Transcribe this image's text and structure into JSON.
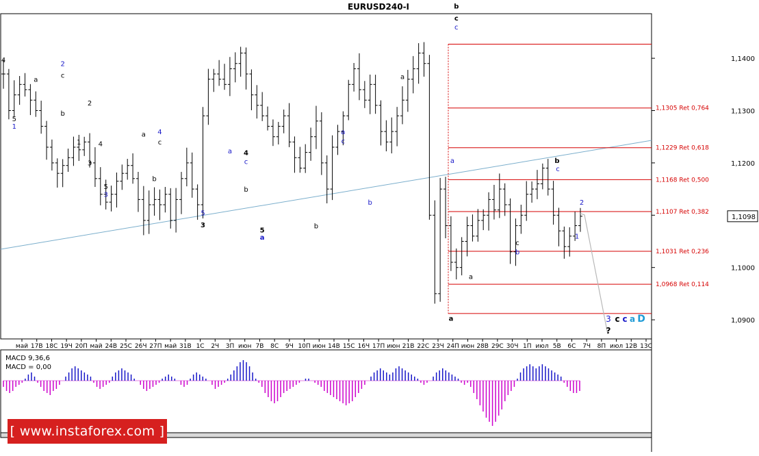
{
  "chart_data": {
    "type": "ohlc",
    "title": "EURUSD240-I",
    "symbol": "EURUSD",
    "timeframe": "H4",
    "ylim": [
      1.087,
      1.148
    ],
    "y_ticks": [
      "1,1400",
      "1,1300",
      "1,1200",
      "1,1100",
      "1,1000",
      "1,0900"
    ],
    "y_tick_values": [
      1.14,
      1.13,
      1.12,
      1.11,
      1.1,
      1.09
    ],
    "x_ticks": [
      "май",
      "17В",
      "18С",
      "19Ч",
      "20П",
      "май",
      "24В",
      "25С",
      "26Ч",
      "27П",
      "май",
      "31В",
      "1С",
      "2Ч",
      "3П",
      "июн",
      "7В",
      "8С",
      "9Ч",
      "10П",
      "июн",
      "14В",
      "15С",
      "16Ч",
      "17П",
      "июн",
      "21В",
      "22С",
      "23Ч",
      "24П",
      "июн",
      "28В",
      "29С",
      "30Ч",
      "1П",
      "июл",
      "5В",
      "6С",
      "7Ч",
      "8П",
      "июл",
      "12В",
      "13С"
    ],
    "current_price_label": "1,1098",
    "current_price": 1.1098,
    "price_path": [
      1.137,
      1.13,
      1.133,
      1.135,
      1.134,
      1.132,
      1.13,
      1.127,
      1.123,
      1.12,
      1.118,
      1.1195,
      1.121,
      1.123,
      1.1225,
      1.124,
      1.12,
      1.117,
      1.114,
      1.1125,
      1.114,
      1.1165,
      1.118,
      1.1195,
      1.117,
      1.113,
      1.109,
      1.112,
      1.113,
      1.112,
      1.114,
      1.109,
      1.113,
      1.117,
      1.12,
      1.115,
      1.112,
      1.129,
      1.136,
      1.137,
      1.136,
      1.135,
      1.138,
      1.139,
      1.141,
      1.137,
      1.133,
      1.131,
      1.129,
      1.127,
      1.125,
      1.127,
      1.129,
      1.124,
      1.121,
      1.119,
      1.122,
      1.125,
      1.128,
      1.12,
      1.115,
      1.123,
      1.126,
      1.129,
      1.135,
      1.138,
      1.134,
      1.132,
      1.135,
      1.131,
      1.126,
      1.124,
      1.126,
      1.129,
      1.132,
      1.136,
      1.138,
      1.141,
      1.139,
      1.11,
      1.095,
      1.115,
      1.108,
      1.101,
      1.1,
      1.105,
      1.108,
      1.106,
      1.109,
      1.11,
      1.113,
      1.111,
      1.115,
      1.112,
      1.103,
      1.108,
      1.11,
      1.114,
      1.115,
      1.116,
      1.119,
      1.115,
      1.11,
      1.107,
      1.104,
      1.106,
      1.108,
      1.1098
    ],
    "fib_levels": [
      {
        "label": "1,1305 Ret 0,764",
        "value": 1.1305
      },
      {
        "label": "1,1229 Ret 0,618",
        "value": 1.1229
      },
      {
        "label": "1,1168 Ret 0,500",
        "value": 1.1168
      },
      {
        "label": "1,1107 Ret 0,382",
        "value": 1.1107
      },
      {
        "label": "1,1031 Ret 0,236",
        "value": 1.1031
      },
      {
        "label": "1,0968 Ret 0,114",
        "value": 1.0968
      }
    ],
    "fib_high": 1.1427,
    "fib_low": 1.0912,
    "trendline": {
      "start_price": 1.1035,
      "end_price": 1.1243
    },
    "wave_labels": [
      {
        "text": "4",
        "color": "#000000",
        "bold": false,
        "bar": 0,
        "price": 1.1392
      },
      {
        "text": "5",
        "color": "#000000",
        "bold": false,
        "bar": 2,
        "price": 1.128
      },
      {
        "text": "1",
        "color": "#1616c8",
        "bold": false,
        "bar": 2,
        "price": 1.1265
      },
      {
        "text": "a",
        "color": "#000000",
        "bold": false,
        "bar": 6,
        "price": 1.1355
      },
      {
        "text": "2",
        "color": "#1616c8",
        "bold": false,
        "bar": 11,
        "price": 1.1385
      },
      {
        "text": "c",
        "color": "#000000",
        "bold": false,
        "bar": 11,
        "price": 1.1363
      },
      {
        "text": "b",
        "color": "#000000",
        "bold": false,
        "bar": 11,
        "price": 1.129
      },
      {
        "text": "2",
        "color": "#000000",
        "bold": false,
        "bar": 16,
        "price": 1.131
      },
      {
        "text": "1",
        "color": "#000000",
        "bold": false,
        "bar": 14,
        "price": 1.1235
      },
      {
        "text": "4",
        "color": "#000000",
        "bold": false,
        "bar": 18,
        "price": 1.1232
      },
      {
        "text": "3",
        "color": "#000000",
        "bold": false,
        "bar": 16,
        "price": 1.1195
      },
      {
        "text": "5",
        "color": "#000000",
        "bold": false,
        "bar": 19,
        "price": 1.115
      },
      {
        "text": "3",
        "color": "#1616c8",
        "bold": false,
        "bar": 19,
        "price": 1.1135
      },
      {
        "text": "a",
        "color": "#000000",
        "bold": false,
        "bar": 26,
        "price": 1.125
      },
      {
        "text": "4",
        "color": "#1616c8",
        "bold": false,
        "bar": 29,
        "price": 1.1255
      },
      {
        "text": "c",
        "color": "#000000",
        "bold": false,
        "bar": 29,
        "price": 1.1235
      },
      {
        "text": "b",
        "color": "#000000",
        "bold": false,
        "bar": 28,
        "price": 1.1165
      },
      {
        "text": "5",
        "color": "#1616c8",
        "bold": false,
        "bar": 37,
        "price": 1.11
      },
      {
        "text": "3",
        "color": "#000000",
        "bold": true,
        "bar": 37,
        "price": 1.1077
      },
      {
        "text": "a",
        "color": "#1616c8",
        "bold": false,
        "bar": 42,
        "price": 1.1218
      },
      {
        "text": "4",
        "color": "#000000",
        "bold": true,
        "bar": 45,
        "price": 1.1215
      },
      {
        "text": "c",
        "color": "#1616c8",
        "bold": false,
        "bar": 45,
        "price": 1.1198
      },
      {
        "text": "b",
        "color": "#000000",
        "bold": false,
        "bar": 45,
        "price": 1.1145
      },
      {
        "text": "5",
        "color": "#000000",
        "bold": true,
        "bar": 48,
        "price": 1.1067
      },
      {
        "text": "a",
        "color": "#1616c8",
        "bold": true,
        "bar": 48,
        "price": 1.1053
      },
      {
        "text": "b",
        "color": "#000000",
        "bold": false,
        "bar": 58,
        "price": 1.1075
      },
      {
        "text": "a",
        "color": "#1616c8",
        "bold": false,
        "bar": 63,
        "price": 1.1255
      },
      {
        "text": "c",
        "color": "#1616c8",
        "bold": false,
        "bar": 63,
        "price": 1.1237
      },
      {
        "text": "b",
        "color": "#1616c8",
        "bold": false,
        "bar": 68,
        "price": 1.112
      },
      {
        "text": "a",
        "color": "#000000",
        "bold": false,
        "bar": 74,
        "price": 1.136
      },
      {
        "text": "b",
        "color": "#000000",
        "bold": true,
        "bar": 84,
        "price": 1.1495
      },
      {
        "text": "c",
        "color": "#000000",
        "bold": true,
        "bar": 84,
        "price": 1.1472
      },
      {
        "text": "c",
        "color": "#1616c8",
        "bold": false,
        "bar": 84,
        "price": 1.1455
      }
    ],
    "main_wave_labels": [
      {
        "text": "a",
        "color": "#1616c8",
        "bold": false,
        "price": 1.12
      },
      {
        "text": "b",
        "color": "#000000",
        "bold": true,
        "price": 1.12
      },
      {
        "text": "c",
        "color": "#1616c8",
        "bold": false,
        "price": 1.1184
      },
      {
        "text": "2",
        "color": "#1616c8",
        "bold": false,
        "price": 1.112
      },
      {
        "text": "c",
        "color": "#000000",
        "bold": false,
        "price": 1.1043
      },
      {
        "text": "b",
        "color": "#1616c8",
        "bold": false,
        "price": 1.1025
      },
      {
        "text": "1",
        "color": "#1616c8",
        "bold": false,
        "price": 1.1055
      },
      {
        "text": "a",
        "color": "#000000",
        "bold": false,
        "price": 1.0978
      },
      {
        "text": "a",
        "color": "#000000",
        "bold": true,
        "price": 1.0898
      }
    ],
    "forecast": {
      "labels": [
        {
          "text": "3",
          "color": "#1616c8",
          "bold": false
        },
        {
          "text": "c",
          "color": "#000000",
          "bold": true
        },
        {
          "text": "c",
          "color": "#1616c8",
          "bold": true
        },
        {
          "text": "a",
          "color": "#1f9bd6",
          "bold": true
        },
        {
          "text": "D",
          "color": "#1f9bd6",
          "bold": true
        },
        {
          "text": "?",
          "color": "#000000",
          "bold": true
        }
      ]
    },
    "indicator": {
      "name": "MACD",
      "label_line1": "MACD 9,36,6",
      "label_line2": "MACD = 0,00",
      "positive_color": "#1616c8",
      "negative_color": "#cc00cc",
      "values": [
        -0.3,
        -0.5,
        -0.6,
        -0.5,
        -0.3,
        -0.2,
        -0.1,
        0.1,
        0.3,
        0.4,
        0.2,
        -0.1,
        -0.3,
        -0.5,
        -0.6,
        -0.7,
        -0.5,
        -0.4,
        -0.2,
        0.0,
        0.2,
        0.4,
        0.6,
        0.7,
        0.6,
        0.5,
        0.4,
        0.3,
        0.2,
        -0.1,
        -0.3,
        -0.4,
        -0.3,
        -0.2,
        -0.1,
        0.2,
        0.4,
        0.5,
        0.6,
        0.5,
        0.4,
        0.3,
        0.1,
        0.0,
        -0.2,
        -0.4,
        -0.5,
        -0.4,
        -0.3,
        -0.2,
        -0.1,
        0.1,
        0.2,
        0.3,
        0.2,
        0.1,
        0.0,
        -0.2,
        -0.3,
        -0.2,
        0.1,
        0.3,
        0.4,
        0.3,
        0.2,
        0.1,
        0.0,
        -0.2,
        -0.4,
        -0.3,
        -0.2,
        -0.1,
        0.1,
        0.3,
        0.5,
        0.7,
        0.9,
        1.0,
        0.9,
        0.7,
        0.4,
        0.1,
        -0.1,
        -0.3,
        -0.6,
        -0.8,
        -1.0,
        -1.1,
        -1.0,
        -0.8,
        -0.6,
        -0.5,
        -0.4,
        -0.3,
        -0.2,
        -0.1,
        0.0,
        0.1,
        0.1,
        0.0,
        -0.1,
        -0.2,
        -0.3,
        -0.5,
        -0.6,
        -0.7,
        -0.8,
        -0.9,
        -1.0,
        -1.1,
        -1.2,
        -1.1,
        -1.0,
        -0.8,
        -0.6,
        -0.4,
        -0.2,
        0.0,
        0.2,
        0.4,
        0.5,
        0.6,
        0.5,
        0.4,
        0.3,
        0.4,
        0.6,
        0.7,
        0.6,
        0.5,
        0.4,
        0.3,
        0.2,
        0.1,
        -0.1,
        -0.2,
        -0.1,
        0.0,
        0.2,
        0.4,
        0.5,
        0.6,
        0.5,
        0.4,
        0.3,
        0.2,
        0.1,
        -0.1,
        -0.2,
        -0.1,
        -0.3,
        -0.6,
        -0.9,
        -1.2,
        -1.5,
        -1.8,
        -2.0,
        -2.2,
        -2.0,
        -1.7,
        -1.4,
        -1.0,
        -0.7,
        -0.5,
        -0.3,
        0.1,
        0.4,
        0.6,
        0.7,
        0.8,
        0.7,
        0.6,
        0.7,
        0.8,
        0.7,
        0.6,
        0.5,
        0.4,
        0.3,
        0.2,
        -0.1,
        -0.3,
        -0.5,
        -0.6,
        -0.6,
        -0.5
      ]
    }
  },
  "watermark": {
    "text": "[ www.instaforex.com ]"
  }
}
